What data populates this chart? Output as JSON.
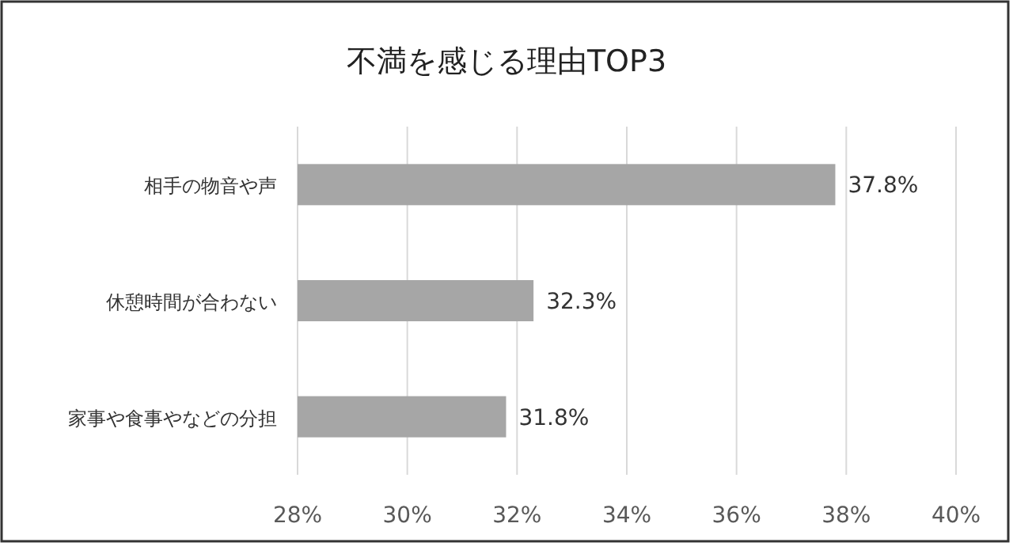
{
  "chart_data": {
    "type": "bar",
    "orientation": "horizontal",
    "title": "不満を感じる理由TOP3",
    "categories": [
      "相手の物音や声",
      "休憩時間が合わない",
      "家事や食事やなどの分担"
    ],
    "values": [
      37.8,
      32.3,
      31.8
    ],
    "value_labels": [
      "37.8%",
      "32.3%",
      "31.8%"
    ],
    "color": "#a6a6a6",
    "xlim": [
      28,
      40
    ],
    "xticks": [
      {
        "value": 28,
        "label": "28%"
      },
      {
        "value": 30,
        "label": "30%"
      },
      {
        "value": 32,
        "label": "32%"
      },
      {
        "value": 34,
        "label": "34%"
      },
      {
        "value": 36,
        "label": "36%"
      },
      {
        "value": 38,
        "label": "38%"
      },
      {
        "value": 40,
        "label": "40%"
      }
    ],
    "grid": "x"
  }
}
